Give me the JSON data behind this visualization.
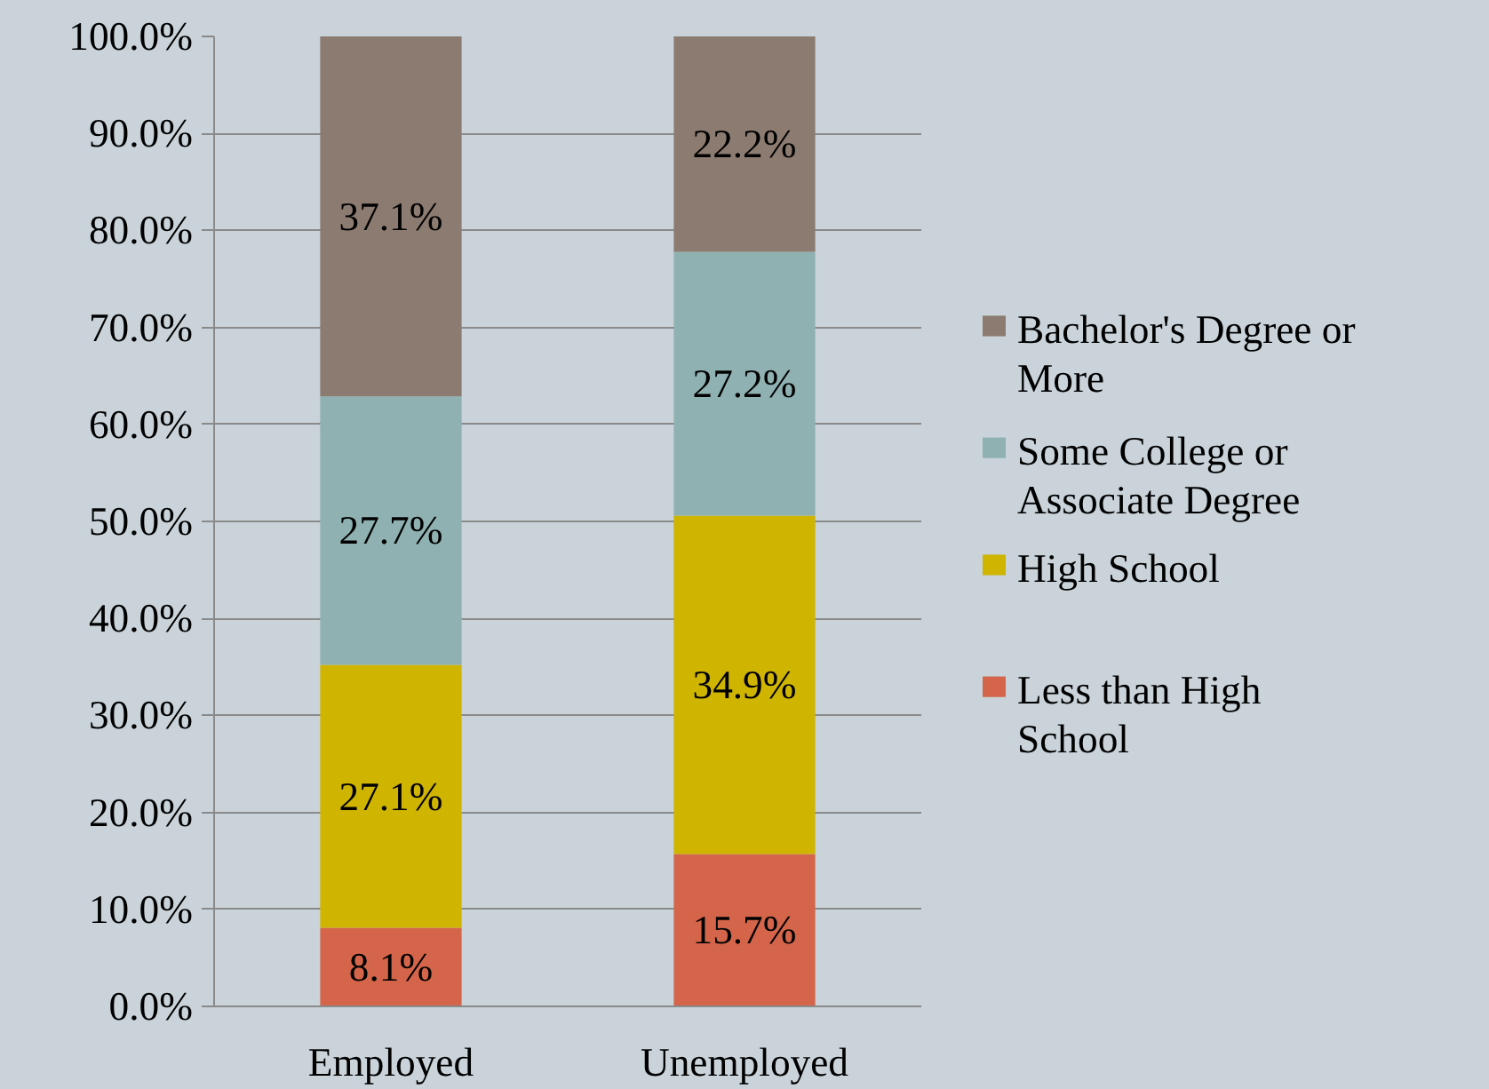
{
  "chart_data": {
    "type": "bar",
    "stacked": true,
    "categories": [
      "Employed",
      "Unemployed"
    ],
    "series": [
      {
        "name": "Less than High School",
        "color": "#d4654a",
        "values": [
          8.1,
          15.7
        ],
        "value_labels": [
          "8.1%",
          "15.7%"
        ]
      },
      {
        "name": "High School",
        "color": "#cfb400",
        "values": [
          27.1,
          34.9
        ],
        "value_labels": [
          "27.1%",
          "34.9%"
        ]
      },
      {
        "name": "Some College or Associate Degree",
        "color": "#8fb1b1",
        "values": [
          27.7,
          27.2
        ],
        "value_labels": [
          "27.7%",
          "27.2%"
        ]
      },
      {
        "name": "Bachelor's Degree or More",
        "color": "#8c7b70",
        "values": [
          37.1,
          22.2
        ],
        "value_labels": [
          "37.1%",
          "22.2%"
        ]
      }
    ],
    "ylim": [
      0,
      100
    ],
    "yticks": [
      {
        "value": 0,
        "label": "0.0%"
      },
      {
        "value": 10,
        "label": "10.0%"
      },
      {
        "value": 20,
        "label": "20.0%"
      },
      {
        "value": 30,
        "label": "30.0%"
      },
      {
        "value": 40,
        "label": "40.0%"
      },
      {
        "value": 50,
        "label": "50.0%"
      },
      {
        "value": 60,
        "label": "60.0%"
      },
      {
        "value": 70,
        "label": "70.0%"
      },
      {
        "value": 80,
        "label": "80.0%"
      },
      {
        "value": 90,
        "label": "90.0%"
      },
      {
        "value": 100,
        "label": "100.0%"
      }
    ],
    "grid": "y",
    "legend": "right"
  }
}
